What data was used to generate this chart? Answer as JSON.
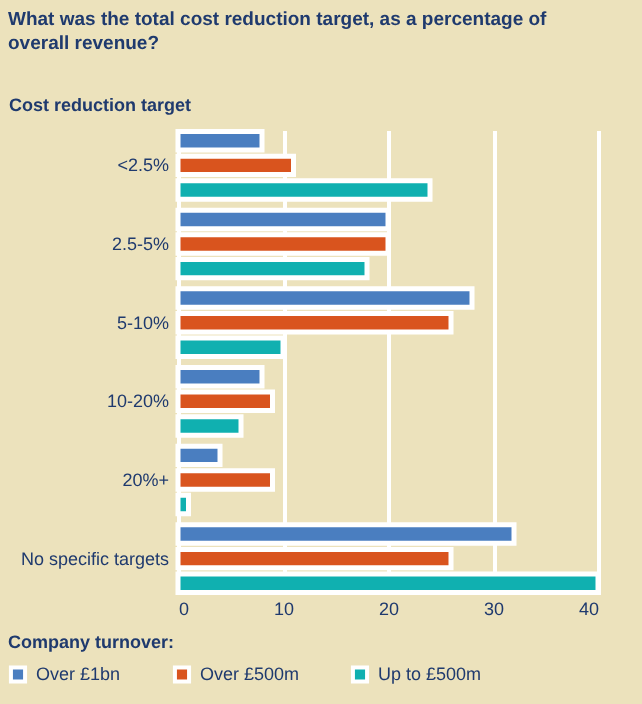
{
  "chart_data": {
    "type": "bar",
    "orientation": "horizontal",
    "title": "What was the total cost reduction target, as a percentage of overall revenue?",
    "ylabel": "Cost reduction target",
    "legend_title": "Company turnover:",
    "categories": [
      "<2.5%",
      "2.5-5%",
      "5-10%",
      "10-20%",
      "20%+",
      "No specific targets"
    ],
    "series": [
      {
        "name": "Over £1bn",
        "color": "#4a7ec0",
        "values": [
          8,
          20,
          28,
          8,
          4,
          32
        ]
      },
      {
        "name": "Over £500m",
        "color": "#d9541e",
        "values": [
          11,
          20,
          26,
          9,
          9,
          26
        ]
      },
      {
        "name": "Up to £500m",
        "color": "#10b0b0",
        "values": [
          24,
          18,
          10,
          6,
          1,
          40
        ]
      }
    ],
    "xlim": [
      0,
      40
    ],
    "xticks": [
      0,
      10,
      20,
      30,
      40
    ],
    "grid": "x",
    "legend": "bottom"
  }
}
